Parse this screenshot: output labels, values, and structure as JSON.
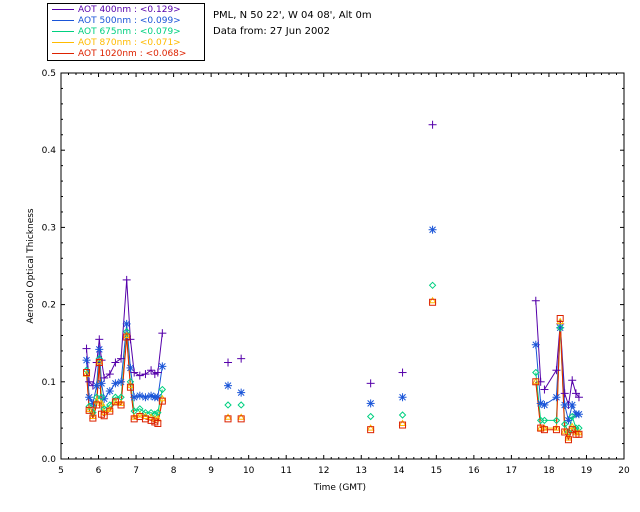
{
  "chart_data": {
    "type": "line",
    "title": "",
    "xlabel": "Time (GMT)",
    "ylabel": "Aerosol Optical Thickness",
    "xlim": [
      5,
      20
    ],
    "ylim": [
      0,
      0.5
    ],
    "xticks": [
      "5",
      "6",
      "7",
      "8",
      "9",
      "10",
      "11",
      "12",
      "13",
      "14",
      "15",
      "16",
      "17",
      "18",
      "19",
      "20"
    ],
    "yticks": [
      "0.0",
      "0.1",
      "0.2",
      "0.3",
      "0.4",
      "0.5"
    ],
    "info": {
      "location": "PML, N 50 22', W 04 08', Alt 0m",
      "date": "Data from: 27 Jun 2002"
    },
    "series": [
      {
        "name": "AOT  400nm",
        "name_display": "AOT  400nm",
        "mean": "<0.129>",
        "color": "#5500aa",
        "marker": "plus",
        "x": [
          5.68,
          5.75,
          5.85,
          5.95,
          6.02,
          6.08,
          6.15,
          6.3,
          6.45,
          6.6,
          6.75,
          6.85,
          6.95,
          7.1,
          7.25,
          7.4,
          7.5,
          7.58,
          7.7,
          9.45,
          9.8,
          13.25,
          14.1,
          14.9,
          17.65,
          17.78,
          17.88,
          18.2,
          18.3,
          18.42,
          18.52,
          18.62,
          18.72,
          18.8
        ],
        "y": [
          0.143,
          0.1,
          0.095,
          0.125,
          0.155,
          0.128,
          0.105,
          0.11,
          0.125,
          0.13,
          0.232,
          0.155,
          0.112,
          0.108,
          0.11,
          0.115,
          0.11,
          0.112,
          0.163,
          0.125,
          0.13,
          0.098,
          0.112,
          0.433,
          0.205,
          0.1,
          0.09,
          0.115,
          0.175,
          0.085,
          0.07,
          0.102,
          0.085,
          0.08
        ],
        "segments": [
          [
            0,
            18
          ],
          [
            24,
            25
          ],
          [
            26,
            33
          ]
        ]
      },
      {
        "name": "AOT  500nm",
        "name_display": "AOT  500nm",
        "mean": "<0.099>",
        "color": "#1a55d8",
        "marker": "asterisk",
        "x": [
          5.68,
          5.75,
          5.85,
          5.95,
          6.02,
          6.08,
          6.15,
          6.3,
          6.45,
          6.6,
          6.75,
          6.85,
          6.95,
          7.1,
          7.25,
          7.4,
          7.5,
          7.58,
          7.7,
          9.45,
          9.8,
          13.25,
          14.1,
          14.9,
          17.65,
          17.78,
          17.88,
          18.2,
          18.3,
          18.42,
          18.52,
          18.62,
          18.72,
          18.8
        ],
        "y": [
          0.128,
          0.08,
          0.072,
          0.095,
          0.142,
          0.098,
          0.078,
          0.088,
          0.098,
          0.1,
          0.175,
          0.118,
          0.08,
          0.082,
          0.08,
          0.082,
          0.08,
          0.08,
          0.12,
          0.095,
          0.086,
          0.072,
          0.08,
          0.297,
          0.148,
          0.072,
          0.07,
          0.08,
          0.17,
          0.07,
          0.05,
          0.07,
          0.058,
          0.058
        ],
        "segments": [
          [
            0,
            18
          ],
          [
            24,
            25
          ],
          [
            26,
            33
          ]
        ]
      },
      {
        "name": "AOT  675nm",
        "name_display": "AOT  675nm",
        "mean": "<0.079>",
        "color": "#00d080",
        "marker": "diamond",
        "x": [
          5.68,
          5.75,
          5.85,
          5.95,
          6.02,
          6.08,
          6.15,
          6.3,
          6.45,
          6.6,
          6.75,
          6.85,
          6.95,
          7.1,
          7.25,
          7.4,
          7.5,
          7.58,
          7.7,
          9.45,
          9.8,
          13.25,
          14.1,
          14.9,
          17.65,
          17.78,
          17.88,
          18.2,
          18.3,
          18.42,
          18.52,
          18.62,
          18.72,
          18.8
        ],
        "y": [
          0.115,
          0.068,
          0.06,
          0.08,
          0.13,
          0.08,
          0.065,
          0.07,
          0.08,
          0.08,
          0.165,
          0.1,
          0.062,
          0.065,
          0.06,
          0.06,
          0.058,
          0.06,
          0.09,
          0.07,
          0.07,
          0.055,
          0.057,
          0.225,
          0.112,
          0.05,
          0.05,
          0.05,
          0.17,
          0.045,
          0.035,
          0.055,
          0.04,
          0.04
        ],
        "segments": [
          [
            0,
            18
          ],
          [
            24,
            25
          ],
          [
            26,
            33
          ]
        ]
      },
      {
        "name": "AOT  870nm",
        "name_display": "AOT  870nm",
        "mean": "<0.071>",
        "color": "#ffbb00",
        "marker": "triangle",
        "x": [
          5.68,
          5.75,
          5.85,
          5.95,
          6.02,
          6.08,
          6.15,
          6.3,
          6.45,
          6.6,
          6.75,
          6.85,
          6.95,
          7.1,
          7.25,
          7.4,
          7.5,
          7.58,
          7.7,
          9.45,
          9.8,
          13.25,
          14.1,
          14.9,
          17.65,
          17.78,
          17.88,
          18.2,
          18.3,
          18.42,
          18.52,
          18.62,
          18.72,
          18.8
        ],
        "y": [
          0.11,
          0.064,
          0.055,
          0.075,
          0.126,
          0.072,
          0.06,
          0.064,
          0.074,
          0.072,
          0.16,
          0.095,
          0.054,
          0.057,
          0.055,
          0.054,
          0.052,
          0.052,
          0.078,
          0.054,
          0.054,
          0.04,
          0.046,
          0.205,
          0.1,
          0.04,
          0.04,
          0.04,
          0.178,
          0.036,
          0.027,
          0.042,
          0.034,
          0.034
        ],
        "segments": [
          [
            0,
            18
          ],
          [
            24,
            25
          ],
          [
            26,
            33
          ]
        ]
      },
      {
        "name": "AOT 1020nm",
        "name_display": "AOT 1020nm",
        "mean": "<0.068>",
        "color": "#dd2200",
        "marker": "square",
        "x": [
          5.68,
          5.75,
          5.85,
          5.95,
          6.02,
          6.08,
          6.15,
          6.3,
          6.45,
          6.6,
          6.75,
          6.85,
          6.95,
          7.1,
          7.25,
          7.4,
          7.5,
          7.58,
          7.7,
          9.45,
          9.8,
          13.25,
          14.1,
          14.9,
          17.65,
          17.78,
          17.88,
          18.2,
          18.3,
          18.42,
          18.52,
          18.62,
          18.72,
          18.8
        ],
        "y": [
          0.112,
          0.063,
          0.053,
          0.07,
          0.125,
          0.058,
          0.056,
          0.062,
          0.074,
          0.07,
          0.158,
          0.093,
          0.052,
          0.055,
          0.052,
          0.05,
          0.048,
          0.046,
          0.075,
          0.052,
          0.052,
          0.038,
          0.044,
          0.203,
          0.1,
          0.04,
          0.038,
          0.038,
          0.182,
          0.035,
          0.025,
          0.038,
          0.032,
          0.032
        ],
        "segments": [
          [
            0,
            18
          ],
          [
            24,
            25
          ],
          [
            26,
            33
          ]
        ]
      }
    ]
  }
}
